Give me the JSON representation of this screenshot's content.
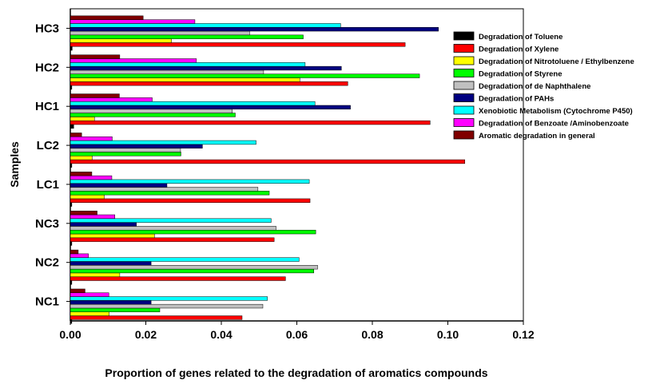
{
  "chart_data": {
    "type": "bar",
    "orientation": "horizontal",
    "title": "",
    "xlabel": "Proportion of genes related to the degradation of aromatics compounds",
    "ylabel": "Samples",
    "xlim": [
      0,
      0.12
    ],
    "x_ticks": [
      "0.00",
      "0.02",
      "0.04",
      "0.06",
      "0.08",
      "0.10",
      "0.12"
    ],
    "grid": false,
    "legend_position": "top-right",
    "categories": [
      "NC1",
      "NC2",
      "NC3",
      "LC1",
      "LC2",
      "HC1",
      "HC2",
      "HC3"
    ],
    "series": [
      {
        "name": "Degradation of Toluene",
        "color": "#000000",
        "values": [
          0.0004,
          0.0004,
          0.0004,
          0.0004,
          0.0004,
          0.0009,
          0.0004,
          0.0005
        ]
      },
      {
        "name": "Degradation of Xylene",
        "color": "#ff0000",
        "values": [
          0.0455,
          0.057,
          0.054,
          0.0635,
          0.1045,
          0.0953,
          0.0735,
          0.0887
        ]
      },
      {
        "name": "Degradation of Nitrotoluene / Ethylbenzene",
        "color": "#ffff00",
        "values": [
          0.0103,
          0.0131,
          0.0223,
          0.009,
          0.0058,
          0.0064,
          0.0608,
          0.0268
        ]
      },
      {
        "name": "Degradation of Styrene",
        "color": "#00ff00",
        "values": [
          0.0237,
          0.0645,
          0.065,
          0.0527,
          0.0293,
          0.0437,
          0.0925,
          0.0617
        ]
      },
      {
        "name": "Degradation of de Naphthalene",
        "color": "#c0c0c0",
        "values": [
          0.051,
          0.0655,
          0.0545,
          0.0497,
          0.0292,
          0.0429,
          0.0512,
          0.0475
        ]
      },
      {
        "name": "Degradation of PAHs",
        "color": "#000080",
        "values": [
          0.0214,
          0.0214,
          0.0175,
          0.0256,
          0.035,
          0.0742,
          0.0718,
          0.0975
        ]
      },
      {
        "name": "Xenobiotic Metabolism (Cytochrome P450)",
        "color": "#00ffff",
        "values": [
          0.0522,
          0.0606,
          0.0532,
          0.0633,
          0.0492,
          0.0648,
          0.0622,
          0.0716
        ]
      },
      {
        "name": "Degradation of Benzoate /Aminobenzoate",
        "color": "#ff00ff",
        "values": [
          0.0102,
          0.0048,
          0.0118,
          0.011,
          0.0111,
          0.0217,
          0.0334,
          0.033
        ]
      },
      {
        "name": "Aromatic degradation in general",
        "color": "#800000",
        "values": [
          0.0039,
          0.0021,
          0.0071,
          0.0057,
          0.003,
          0.013,
          0.0131,
          0.0193
        ]
      }
    ]
  }
}
